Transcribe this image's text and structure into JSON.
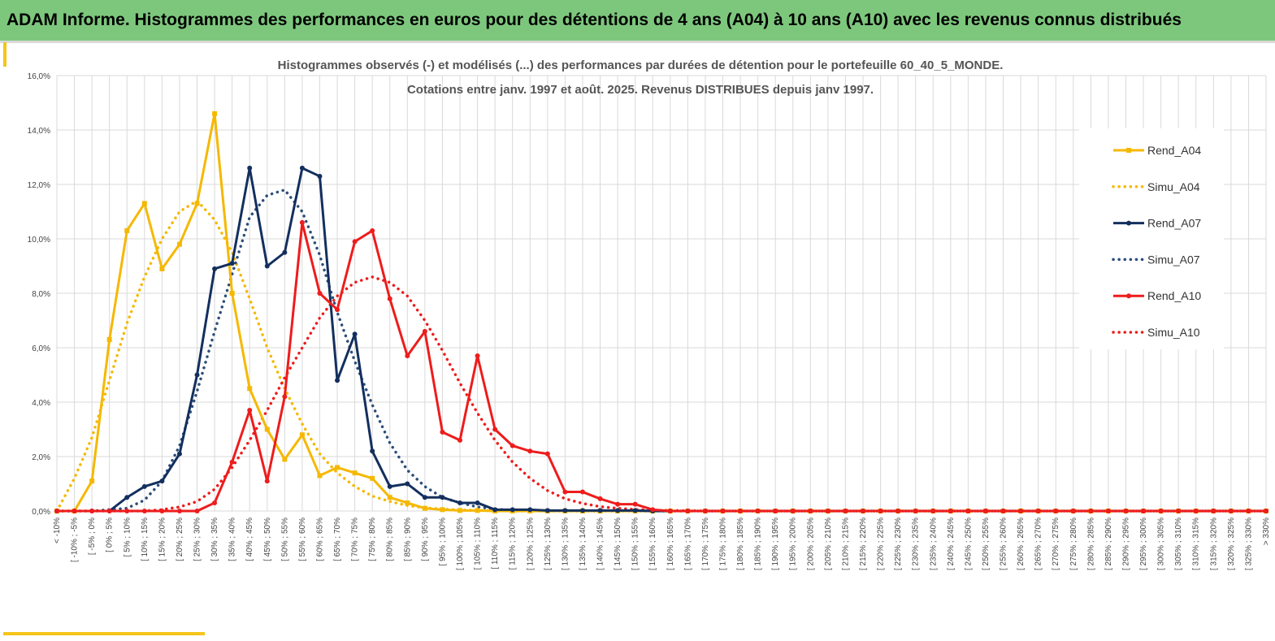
{
  "header": {
    "title": "ADAM Informe. Histogrammes des performances en euros pour des détentions de 4 ans (A04) à 10 ans (A10) avec les revenus connus distribués"
  },
  "colors": {
    "banner": "#7dc77d",
    "accent": "#f5c518",
    "A04": "#f5b800",
    "A07": "#132f5e",
    "A10": "#ee1c1c",
    "sim_A07": "#2b4d7a",
    "grid": "#d9d9d9"
  },
  "chart_data": {
    "type": "line",
    "title": "Histogrammes observés (-) et modélisés (...) des performances par durées de détention pour le portefeuille 60_40_5_MONDE.",
    "subtitle": "Cotations entre janv. 1997 et août. 2025. Revenus DISTRIBUES depuis janv 1997.",
    "ylim": [
      0,
      16
    ],
    "yticks": [
      "0,0%",
      "2,0%",
      "4,0%",
      "6,0%",
      "8,0%",
      "10,0%",
      "12,0%",
      "14,0%",
      "16,0%"
    ],
    "grid": true,
    "legend_position": "right",
    "categories": [
      "< -10%",
      "[ -10% ; -5%",
      "[ -5% ; 0%",
      "[ 0% ; 5%",
      "[ 5% ; 10%",
      "[ 10% ; 15%",
      "[ 15% ; 20%",
      "[ 20% ; 25%",
      "[ 25% ; 30%",
      "[ 30% ; 35%",
      "[ 35% ; 40%",
      "[ 40% ; 45%",
      "[ 45% ; 50%",
      "[ 50% ; 55%",
      "[ 55% ; 60%",
      "[ 60% ; 65%",
      "[ 65% ; 70%",
      "[ 70% ; 75%",
      "[ 75% ; 80%",
      "[ 80% ; 85%",
      "[ 85% ; 90%",
      "[ 90% ; 95%",
      "[ 95% ; 100%",
      "[ 100% ; 105%",
      "[ 105% ; 110%",
      "[ 110% ; 115%",
      "[ 115% ; 120%",
      "[ 120% ; 125%",
      "[ 125% ; 130%",
      "[ 130% ; 135%",
      "[ 135% ; 140%",
      "[ 140% ; 145%",
      "[ 145% ; 150%",
      "[ 150% ; 155%",
      "[ 155% ; 160%",
      "[ 160% ; 165%",
      "[ 165% ; 170%",
      "[ 170% ; 175%",
      "[ 175% ; 180%",
      "[ 180% ; 185%",
      "[ 185% ; 190%",
      "[ 190% ; 195%",
      "[ 195% ; 200%",
      "[ 200% ; 205%",
      "[ 205% ; 210%",
      "[ 210% ; 215%",
      "[ 215% ; 220%",
      "[ 220% ; 225%",
      "[ 225% ; 230%",
      "[ 230% ; 235%",
      "[ 235% ; 240%",
      "[ 240% ; 245%",
      "[ 245% ; 250%",
      "[ 250% ; 255%",
      "[ 255% ; 260%",
      "[ 260% ; 265%",
      "[ 265% ; 270%",
      "[ 270% ; 275%",
      "[ 275% ; 280%",
      "[ 280% ; 285%",
      "[ 285% ; 290%",
      "[ 290% ; 295%",
      "[ 295% ; 300%",
      "[ 300% ; 305%",
      "[ 305% ; 310%",
      "[ 310% ; 315%",
      "[ 315% ; 320%",
      "[ 320% ; 325%",
      "[ 325% ; 330%",
      "> 330%"
    ],
    "series": [
      {
        "name": "Rend_A04",
        "style": "solid",
        "marker": "square",
        "color": "#f5b800",
        "values": [
          0,
          0,
          1.1,
          6.3,
          10.3,
          11.3,
          8.9,
          9.8,
          11.3,
          14.6,
          8.0,
          4.5,
          3.0,
          1.9,
          2.8,
          1.3,
          1.6,
          1.4,
          1.2,
          0.5,
          0.3,
          0.1,
          0.05,
          0.02,
          0.02,
          0,
          0,
          0,
          0,
          0,
          0,
          0,
          0,
          0,
          0,
          0,
          0,
          0,
          0,
          0,
          0,
          0,
          0,
          0,
          0,
          0,
          0,
          0,
          0,
          0,
          0,
          0,
          0,
          0,
          0,
          0,
          0,
          0,
          0,
          0,
          0,
          0,
          0,
          0,
          0,
          0,
          0,
          0,
          0,
          0
        ]
      },
      {
        "name": "Simu_A04",
        "style": "dotted",
        "color": "#f5b800",
        "values": [
          0,
          1.2,
          2.7,
          4.8,
          6.9,
          8.6,
          10.0,
          11.0,
          11.4,
          10.7,
          9.5,
          7.8,
          6.0,
          4.5,
          3.2,
          2.1,
          1.4,
          0.9,
          0.55,
          0.35,
          0.2,
          0.12,
          0.07,
          0.04,
          0.02,
          0.01,
          0,
          0,
          0,
          0,
          0,
          0,
          0,
          0,
          0,
          0,
          0,
          0,
          0,
          0,
          0,
          0,
          0,
          0,
          0,
          0,
          0,
          0,
          0,
          0,
          0,
          0,
          0,
          0,
          0,
          0,
          0,
          0,
          0,
          0,
          0,
          0,
          0,
          0,
          0,
          0,
          0,
          0,
          0,
          0
        ]
      },
      {
        "name": "Rend_A07",
        "style": "solid",
        "marker": "circle",
        "color": "#132f5e",
        "values": [
          0,
          0,
          0,
          0,
          0.5,
          0.9,
          1.1,
          2.1,
          5.0,
          8.9,
          9.1,
          12.6,
          9.0,
          9.5,
          12.6,
          12.3,
          4.8,
          6.5,
          2.2,
          0.9,
          1.0,
          0.5,
          0.5,
          0.3,
          0.3,
          0.05,
          0.05,
          0.05,
          0.02,
          0.02,
          0.02,
          0.02,
          0.02,
          0.02,
          0,
          0,
          0,
          0,
          0,
          0,
          0,
          0,
          0,
          0,
          0,
          0,
          0,
          0,
          0,
          0,
          0,
          0,
          0,
          0,
          0,
          0,
          0,
          0,
          0,
          0,
          0,
          0,
          0,
          0,
          0,
          0,
          0,
          0,
          0,
          0
        ]
      },
      {
        "name": "Simu_A07",
        "style": "dotted",
        "color": "#2b4d7a",
        "values": [
          0,
          0,
          0,
          0.05,
          0.1,
          0.4,
          1.1,
          2.4,
          4.4,
          6.6,
          8.7,
          10.8,
          11.6,
          11.8,
          11.0,
          9.4,
          7.3,
          5.5,
          3.9,
          2.5,
          1.5,
          0.9,
          0.5,
          0.3,
          0.15,
          0.07,
          0.03,
          0.01,
          0,
          0,
          0,
          0,
          0,
          0,
          0,
          0,
          0,
          0,
          0,
          0,
          0,
          0,
          0,
          0,
          0,
          0,
          0,
          0,
          0,
          0,
          0,
          0,
          0,
          0,
          0,
          0,
          0,
          0,
          0,
          0,
          0,
          0,
          0,
          0,
          0,
          0,
          0,
          0,
          0,
          0
        ]
      },
      {
        "name": "Rend_A10",
        "style": "solid",
        "marker": "circle",
        "color": "#ee1c1c",
        "values": [
          0,
          0,
          0,
          0,
          0,
          0,
          0,
          0,
          0,
          0.3,
          1.8,
          3.7,
          1.1,
          4.2,
          10.6,
          8.0,
          7.4,
          9.9,
          10.3,
          7.8,
          5.7,
          6.6,
          2.9,
          2.6,
          5.7,
          3.0,
          2.4,
          2.2,
          2.1,
          0.7,
          0.7,
          0.45,
          0.25,
          0.25,
          0.05,
          0,
          0,
          0,
          0,
          0,
          0,
          0,
          0,
          0,
          0,
          0,
          0,
          0,
          0,
          0,
          0,
          0,
          0,
          0,
          0,
          0,
          0,
          0,
          0,
          0,
          0,
          0,
          0,
          0,
          0,
          0,
          0,
          0,
          0,
          0
        ]
      },
      {
        "name": "Simu_A10",
        "style": "dotted",
        "color": "#ee1c1c",
        "values": [
          0,
          0,
          0,
          0,
          0,
          0,
          0.05,
          0.15,
          0.35,
          0.8,
          1.6,
          2.6,
          3.7,
          4.9,
          6.0,
          7.1,
          7.9,
          8.4,
          8.6,
          8.4,
          7.9,
          7.0,
          5.9,
          4.7,
          3.6,
          2.6,
          1.8,
          1.2,
          0.75,
          0.45,
          0.28,
          0.16,
          0.1,
          0.06,
          0.03,
          0.02,
          0.01,
          0,
          0,
          0,
          0,
          0,
          0,
          0,
          0,
          0,
          0,
          0,
          0,
          0,
          0,
          0,
          0,
          0,
          0,
          0,
          0,
          0,
          0,
          0,
          0,
          0,
          0,
          0,
          0,
          0,
          0,
          0,
          0,
          0
        ]
      }
    ]
  }
}
